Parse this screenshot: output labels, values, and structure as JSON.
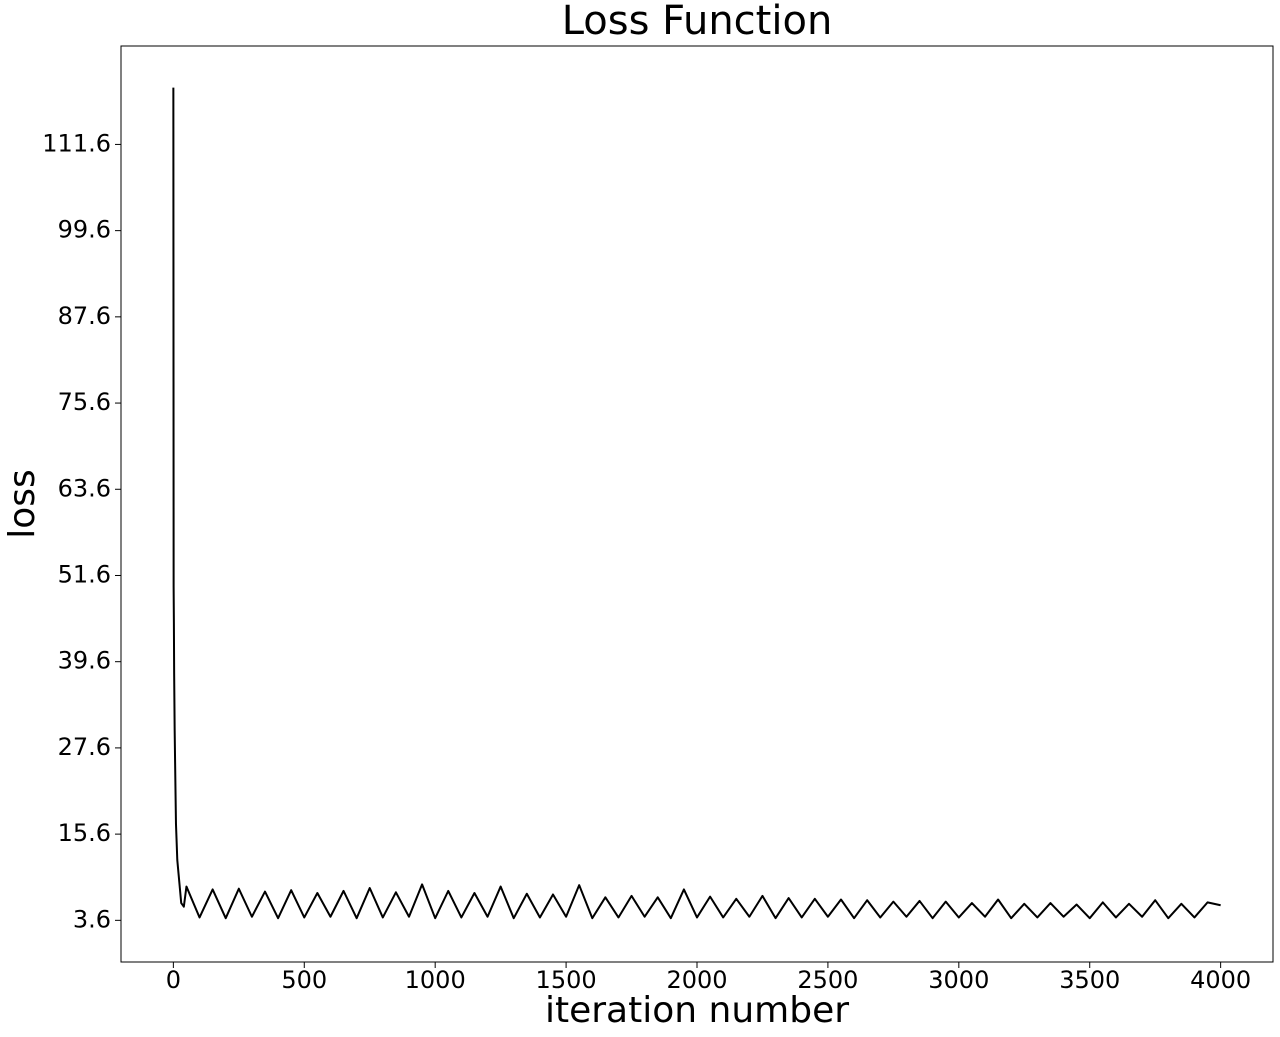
{
  "chart_data": {
    "type": "line",
    "title": "Loss Function",
    "x_label": "iteration number",
    "y_label": "loss",
    "x": [
      0,
      1,
      2,
      3,
      5,
      8,
      10,
      12,
      15,
      20,
      25,
      30,
      40,
      50,
      100,
      150,
      200,
      250,
      300,
      350,
      400,
      450,
      500,
      550,
      600,
      650,
      700,
      750,
      800,
      850,
      900,
      950,
      1000,
      1050,
      1100,
      1150,
      1200,
      1250,
      1300,
      1350,
      1400,
      1450,
      1500,
      1550,
      1600,
      1650,
      1700,
      1750,
      1800,
      1850,
      1900,
      1950,
      2000,
      2050,
      2100,
      2150,
      2200,
      2250,
      2300,
      2350,
      2400,
      2450,
      2500,
      2550,
      2600,
      2650,
      2700,
      2750,
      2800,
      2850,
      2900,
      2950,
      3000,
      3050,
      3100,
      3150,
      3200,
      3250,
      3300,
      3350,
      3400,
      3450,
      3500,
      3550,
      3600,
      3650,
      3700,
      3750,
      3800,
      3850,
      3900,
      3950,
      4000
    ],
    "series": [
      {
        "color": "#000000",
        "values": [
          119.5,
          50,
          45,
          38,
          30,
          22,
          17,
          15,
          12,
          10,
          8,
          6,
          5.5,
          8.3,
          4.0,
          7.9,
          3.9,
          8.0,
          4.1,
          7.6,
          3.9,
          7.8,
          4.0,
          7.4,
          4.1,
          7.7,
          3.9,
          8.1,
          4.0,
          7.5,
          4.1,
          8.6,
          3.9,
          7.7,
          4.0,
          7.4,
          4.1,
          8.3,
          3.9,
          7.3,
          4.0,
          7.2,
          4.1,
          8.5,
          3.9,
          6.8,
          4.0,
          7.0,
          4.1,
          6.8,
          3.9,
          7.9,
          4.0,
          6.9,
          4.0,
          6.6,
          4.1,
          7.0,
          3.9,
          6.7,
          4.0,
          6.6,
          4.1,
          6.5,
          3.9,
          6.4,
          4.0,
          6.2,
          4.1,
          6.3,
          3.9,
          6.2,
          4.0,
          6.0,
          4.1,
          6.5,
          3.9,
          5.9,
          4.0,
          6.0,
          4.1,
          5.8,
          3.9,
          6.1,
          4.0,
          5.9,
          4.1,
          6.4,
          3.9,
          5.9,
          4.0,
          6.1,
          5.7
        ]
      }
    ],
    "xlim": [
      -200,
      4200
    ],
    "xticks": [
      0,
      500,
      1000,
      1500,
      2000,
      2500,
      3000,
      3500,
      4000
    ],
    "ylim": [
      -2.2,
      125.3
    ],
    "yticks": [
      3.6,
      15.6,
      27.6,
      39.6,
      51.6,
      63.6,
      75.6,
      87.6,
      99.6,
      111.6
    ],
    "grid": false
  }
}
